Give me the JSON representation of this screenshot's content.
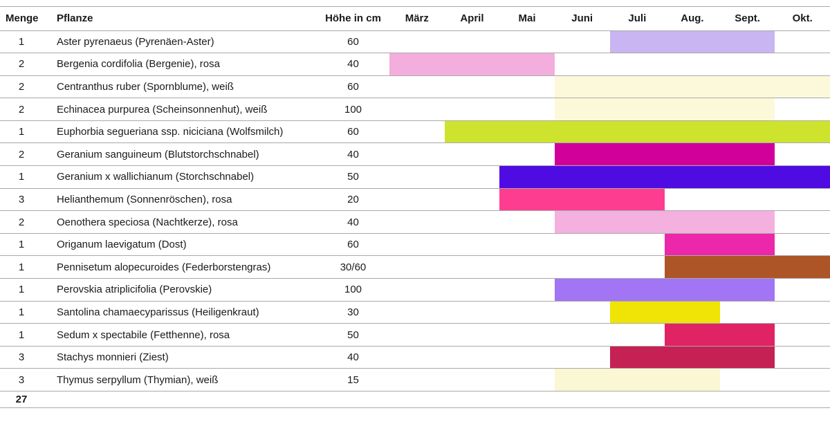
{
  "table": {
    "columns": {
      "menge": "Menge",
      "pflanze": "Pflanze",
      "hoehe": "Höhe in cm"
    },
    "total": "27"
  },
  "chart_data": {
    "type": "table",
    "title": "Pflanzliste mit Blütezeit-Kalender (Gantt)",
    "columns": [
      "Menge",
      "Pflanze",
      "Höhe in cm",
      "März",
      "April",
      "Mai",
      "Juni",
      "Juli",
      "Aug.",
      "Sept.",
      "Okt."
    ],
    "months": [
      "März",
      "April",
      "Mai",
      "Juni",
      "Juli",
      "Aug.",
      "Sept.",
      "Okt."
    ],
    "grid": "horizontal row separators only",
    "rows": [
      {
        "menge": "1",
        "pflanze": "Aster pyrenaeus (Pyrenäen-Aster)",
        "hoehe": "60",
        "bloom_start": "Juli",
        "bloom_end": "Sept.",
        "color": "#c9b5f1"
      },
      {
        "menge": "2",
        "pflanze": "Bergenia cordifolia (Bergenie), rosa",
        "hoehe": "40",
        "bloom_start": "März",
        "bloom_end": "Mai",
        "color": "#f4aedd"
      },
      {
        "menge": "2",
        "pflanze": "Centranthus ruber (Spornblume), weiß",
        "hoehe": "60",
        "bloom_start": "Juni",
        "bloom_end": "Okt.",
        "color": "#fbf9da"
      },
      {
        "menge": "2",
        "pflanze": "Echinacea purpurea (Scheinsonnenhut), weiß",
        "hoehe": "100",
        "bloom_start": "Juni",
        "bloom_end": "Sept.",
        "color": "#fbf9da"
      },
      {
        "menge": "1",
        "pflanze": "Euphorbia segueriana ssp. niciciana (Wolfsmilch)",
        "hoehe": "60",
        "bloom_start": "April",
        "bloom_end": "Okt.",
        "color": "#cde32e"
      },
      {
        "menge": "2",
        "pflanze": "Geranium sanguineum (Blutstorchschnabel)",
        "hoehe": "40",
        "bloom_start": "Juni",
        "bloom_end": "Sept.",
        "color": "#d1009b"
      },
      {
        "menge": "1",
        "pflanze": "Geranium x wallichianum (Storchschnabel)",
        "hoehe": "50",
        "bloom_start": "Mai",
        "bloom_end": "Okt.",
        "color": "#4e0ce2"
      },
      {
        "menge": "3",
        "pflanze": "Helianthemum (Sonnenröschen), rosa",
        "hoehe": "20",
        "bloom_start": "Mai",
        "bloom_end": "Juli",
        "color": "#fd3e90"
      },
      {
        "menge": "2",
        "pflanze": "Oenothera speciosa (Nachtkerze), rosa",
        "hoehe": "40",
        "bloom_start": "Juni",
        "bloom_end": "Sept.",
        "color": "#f4b0de"
      },
      {
        "menge": "1",
        "pflanze": "Origanum laevigatum (Dost)",
        "hoehe": "60",
        "bloom_start": "Aug.",
        "bloom_end": "Sept.",
        "color": "#ec27a9"
      },
      {
        "menge": "1",
        "pflanze": "Pennisetum alopecuroides (Federborstengras)",
        "hoehe": "30/60",
        "bloom_start": "Aug.",
        "bloom_end": "Okt.",
        "color": "#ae5527"
      },
      {
        "menge": "1",
        "pflanze": "Perovskia atriplicifolia (Perovskie)",
        "hoehe": "100",
        "bloom_start": "Juni",
        "bloom_end": "Sept.",
        "color": "#a175f3"
      },
      {
        "menge": "1",
        "pflanze": "Santolina chamaecyparissus (Heiligenkraut)",
        "hoehe": "30",
        "bloom_start": "Juli",
        "bloom_end": "Aug.",
        "color": "#efe405"
      },
      {
        "menge": "1",
        "pflanze": "Sedum x spectabile (Fetthenne), rosa",
        "hoehe": "50",
        "bloom_start": "Aug.",
        "bloom_end": "Sept.",
        "color": "#e02365"
      },
      {
        "menge": "3",
        "pflanze": "Stachys monnieri (Ziest)",
        "hoehe": "40",
        "bloom_start": "Juli",
        "bloom_end": "Sept.",
        "color": "#c52155"
      },
      {
        "menge": "3",
        "pflanze": "Thymus serpyllum (Thymian), weiß",
        "hoehe": "15",
        "bloom_start": "Juni",
        "bloom_end": "Aug.",
        "color": "#fbf6d3"
      }
    ],
    "total_menge": "27"
  }
}
